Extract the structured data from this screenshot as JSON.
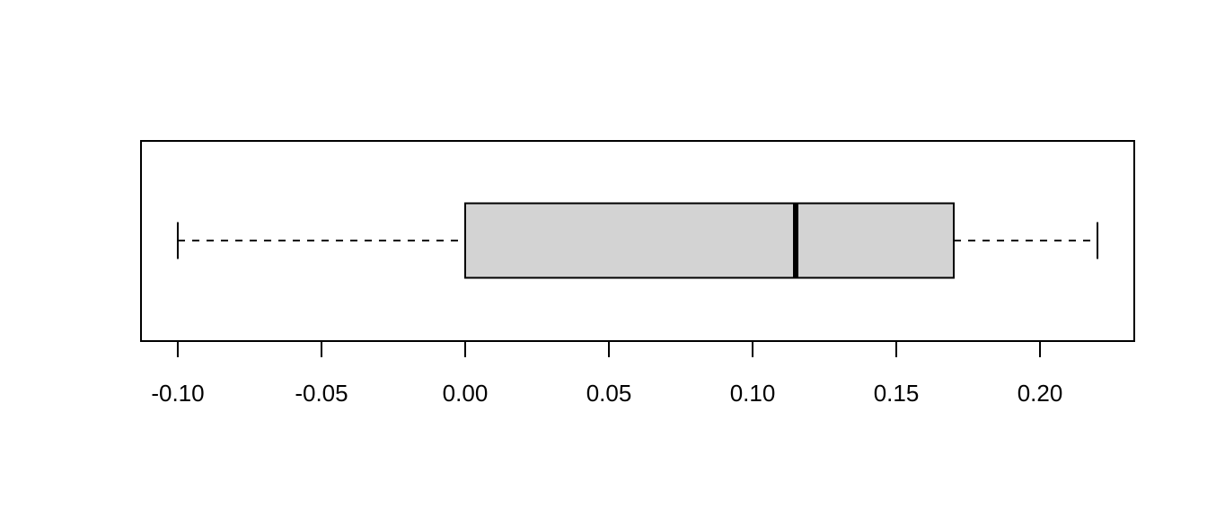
{
  "chart_data": {
    "type": "boxplot",
    "orientation": "horizontal",
    "min": -0.1,
    "q1": 0.0,
    "median": 0.115,
    "q3": 0.17,
    "max": 0.22,
    "color": "#d3d3d3",
    "xlim": [
      -0.1128,
      0.2328
    ],
    "xticks": [
      {
        "value": -0.1,
        "label": "-0.10"
      },
      {
        "value": -0.05,
        "label": "-0.05"
      },
      {
        "value": 0.0,
        "label": "0.00"
      },
      {
        "value": 0.05,
        "label": "0.05"
      },
      {
        "value": 0.1,
        "label": "0.10"
      },
      {
        "value": 0.15,
        "label": "0.15"
      },
      {
        "value": 0.2,
        "label": "0.20"
      }
    ]
  }
}
